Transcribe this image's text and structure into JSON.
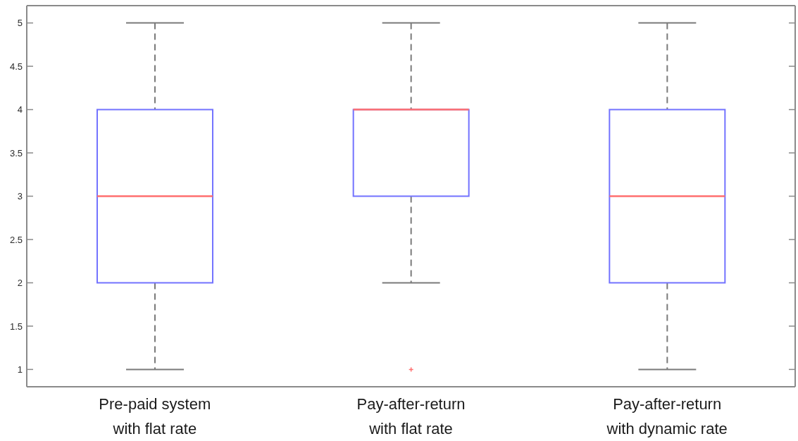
{
  "chart_data": {
    "type": "box",
    "categories": [
      "Pre-paid system\nwith flat rate",
      "Pay-after-return\nwith flat rate",
      "Pay-after-return\nwith dynamic rate"
    ],
    "series": [
      {
        "color": "#7373ff",
        "boxes": [
          {
            "low": 1,
            "q1": 2,
            "median": 3,
            "q3": 4,
            "high": 5
          },
          {
            "low": 2,
            "q1": 3,
            "median": 4,
            "q3": 4,
            "high": 5,
            "outliers": [
              1
            ]
          },
          {
            "low": 1,
            "q1": 2,
            "median": 3,
            "q3": 4,
            "high": 5
          }
        ]
      }
    ],
    "ylim": [
      0.8,
      5.2
    ],
    "yticks": [
      1,
      1.5,
      2,
      2.5,
      3,
      3.5,
      4,
      4.5,
      5
    ]
  }
}
